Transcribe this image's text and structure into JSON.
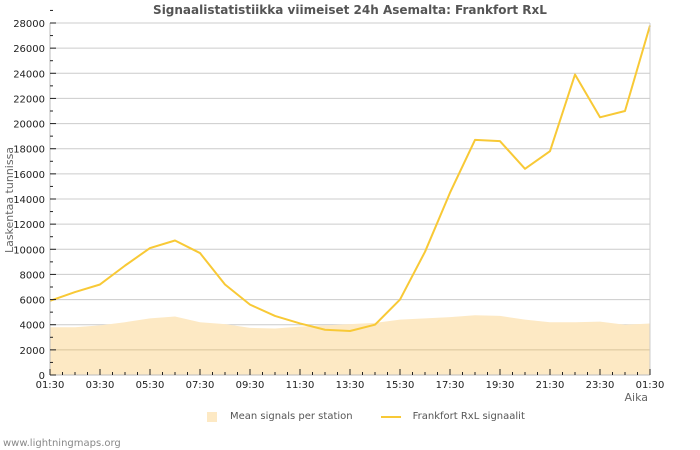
{
  "chart_data": {
    "type": "line",
    "title": "Signaalistatistiikka viimeiset 24h Asemalta: Frankfort RxL",
    "xlabel": "Aika",
    "ylabel": "Laskentaa tunnissa",
    "ylim": [
      0,
      28000
    ],
    "y_ticks": [
      0,
      2000,
      4000,
      6000,
      8000,
      10000,
      12000,
      14000,
      16000,
      18000,
      20000,
      22000,
      24000,
      26000,
      28000
    ],
    "x_tick_labels": [
      "01:30",
      "03:30",
      "05:30",
      "07:30",
      "09:30",
      "11:30",
      "13:30",
      "15:30",
      "17:30",
      "19:30",
      "21:30",
      "23:30",
      "01:30"
    ],
    "grid": true,
    "legend_position": "bottom",
    "x": [
      "01:30",
      "02:30",
      "03:30",
      "04:30",
      "05:30",
      "06:30",
      "07:30",
      "08:30",
      "09:30",
      "10:30",
      "11:30",
      "12:30",
      "13:30",
      "14:30",
      "15:30",
      "16:30",
      "17:30",
      "18:30",
      "19:30",
      "20:30",
      "21:30",
      "22:30",
      "23:30",
      "00:30",
      "01:30"
    ],
    "series": [
      {
        "name": "Mean signals per station",
        "kind": "area",
        "color": "#fde9c4",
        "values": [
          3800,
          3800,
          3950,
          4200,
          4500,
          4650,
          4200,
          4050,
          3750,
          3700,
          3850,
          3950,
          4050,
          4150,
          4400,
          4500,
          4600,
          4750,
          4700,
          4400,
          4200,
          4200,
          4250,
          4000,
          4100
        ]
      },
      {
        "name": "Frankfort RxL signaalit",
        "kind": "line",
        "color": "#f8c936",
        "values": [
          5900,
          6600,
          7200,
          8700,
          10100,
          10700,
          9700,
          7200,
          5600,
          4700,
          4100,
          3600,
          3500,
          4000,
          6000,
          9800,
          14500,
          18700,
          18600,
          16400,
          17800,
          23900,
          20500,
          21000,
          27800
        ]
      }
    ]
  },
  "legend": {
    "mean_label": "Mean signals per station",
    "line_label": "Frankfort RxL signaalit"
  },
  "footer": "www.lightningmaps.org"
}
